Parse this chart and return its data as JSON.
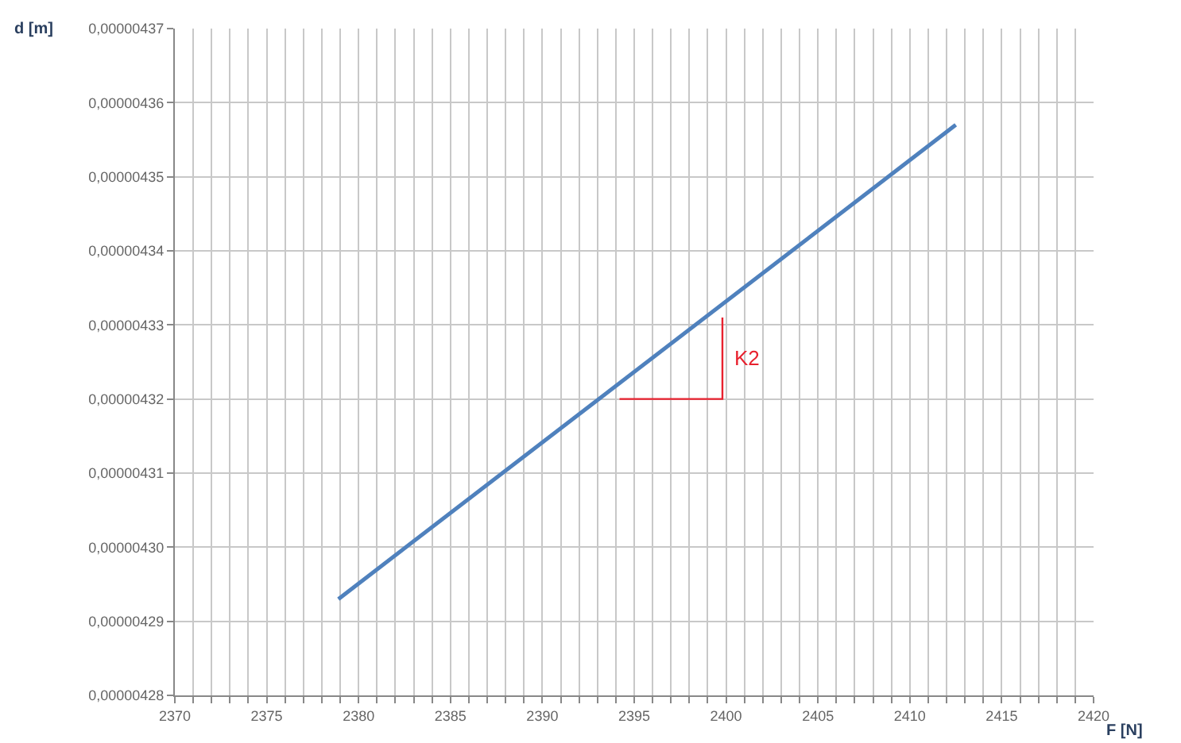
{
  "chart_data": {
    "type": "line",
    "xlabel": "F [N]",
    "ylabel": "d [m]",
    "series": [
      {
        "color": "#4f81bd",
        "x": [
          2378.9,
          2412.5
        ],
        "values": [
          4.293e-06,
          4.357e-06
        ]
      },
      {
        "color": "#e8212e",
        "x": [
          2394.2,
          2399.8,
          2399.8
        ],
        "values": [
          4.32e-06,
          4.32e-06,
          4.331e-06
        ]
      }
    ],
    "annotations": [
      "K2"
    ],
    "xlim": [
      2370,
      2420
    ],
    "xticks": [
      2370,
      {
        "value": 2371,
        "label": null
      },
      {
        "value": 2372,
        "label": null
      },
      {
        "value": 2373,
        "label": null
      },
      {
        "value": 2374,
        "label": null
      },
      2375,
      {
        "value": 2376,
        "label": null
      },
      {
        "value": 2377,
        "label": null
      },
      {
        "value": 2378,
        "label": null
      },
      {
        "value": 2379,
        "label": null
      },
      2380,
      {
        "value": 2381,
        "label": null
      },
      {
        "value": 2382,
        "label": null
      },
      {
        "value": 2383,
        "label": null
      },
      {
        "value": 2384,
        "label": null
      },
      2385,
      {
        "value": 2386,
        "label": null
      },
      {
        "value": 2387,
        "label": null
      },
      {
        "value": 2388,
        "label": null
      },
      {
        "value": 2389,
        "label": null
      },
      2390,
      {
        "value": 2391,
        "label": null
      },
      {
        "value": 2392,
        "label": null
      },
      {
        "value": 2393,
        "label": null
      },
      {
        "value": 2394,
        "label": null
      },
      2395,
      {
        "value": 2396,
        "label": null
      },
      {
        "value": 2397,
        "label": null
      },
      {
        "value": 2398,
        "label": null
      },
      {
        "value": 2399,
        "label": null
      },
      2400,
      {
        "value": 2401,
        "label": null
      },
      {
        "value": 2402,
        "label": null
      },
      {
        "value": 2403,
        "label": null
      },
      {
        "value": 2404,
        "label": null
      },
      2405,
      {
        "value": 2406,
        "label": null
      },
      {
        "value": 2407,
        "label": null
      },
      {
        "value": 2408,
        "label": null
      },
      {
        "value": 2409,
        "label": null
      },
      2410,
      {
        "value": 2411,
        "label": null
      },
      {
        "value": 2412,
        "label": null
      },
      {
        "value": 2413,
        "label": null
      },
      {
        "value": 2414,
        "label": null
      },
      2415,
      {
        "value": 2416,
        "label": null
      },
      {
        "value": 2417,
        "label": null
      },
      {
        "value": 2418,
        "label": null
      },
      {
        "value": 2419,
        "label": null
      },
      2420
    ],
    "ylim": [
      4.28e-06,
      4.37e-06
    ],
    "yticks": [
      {
        "value": 4.28e-06,
        "label": "0,00000428"
      },
      {
        "value": 4.29e-06,
        "label": "0,00000429"
      },
      {
        "value": 4.3e-06,
        "label": "0,00000430"
      },
      {
        "value": 4.31e-06,
        "label": "0,00000431"
      },
      {
        "value": 4.32e-06,
        "label": "0,00000432"
      },
      {
        "value": 4.33e-06,
        "label": "0,00000433"
      },
      {
        "value": 4.34e-06,
        "label": "0,00000434"
      },
      {
        "value": 4.35e-06,
        "label": "0,00000435"
      },
      {
        "value": 4.36e-06,
        "label": "0,00000436"
      },
      {
        "value": 4.37e-06,
        "label": "0,00000437"
      }
    ],
    "grid": true,
    "marker": "none",
    "line_style": "solid"
  }
}
